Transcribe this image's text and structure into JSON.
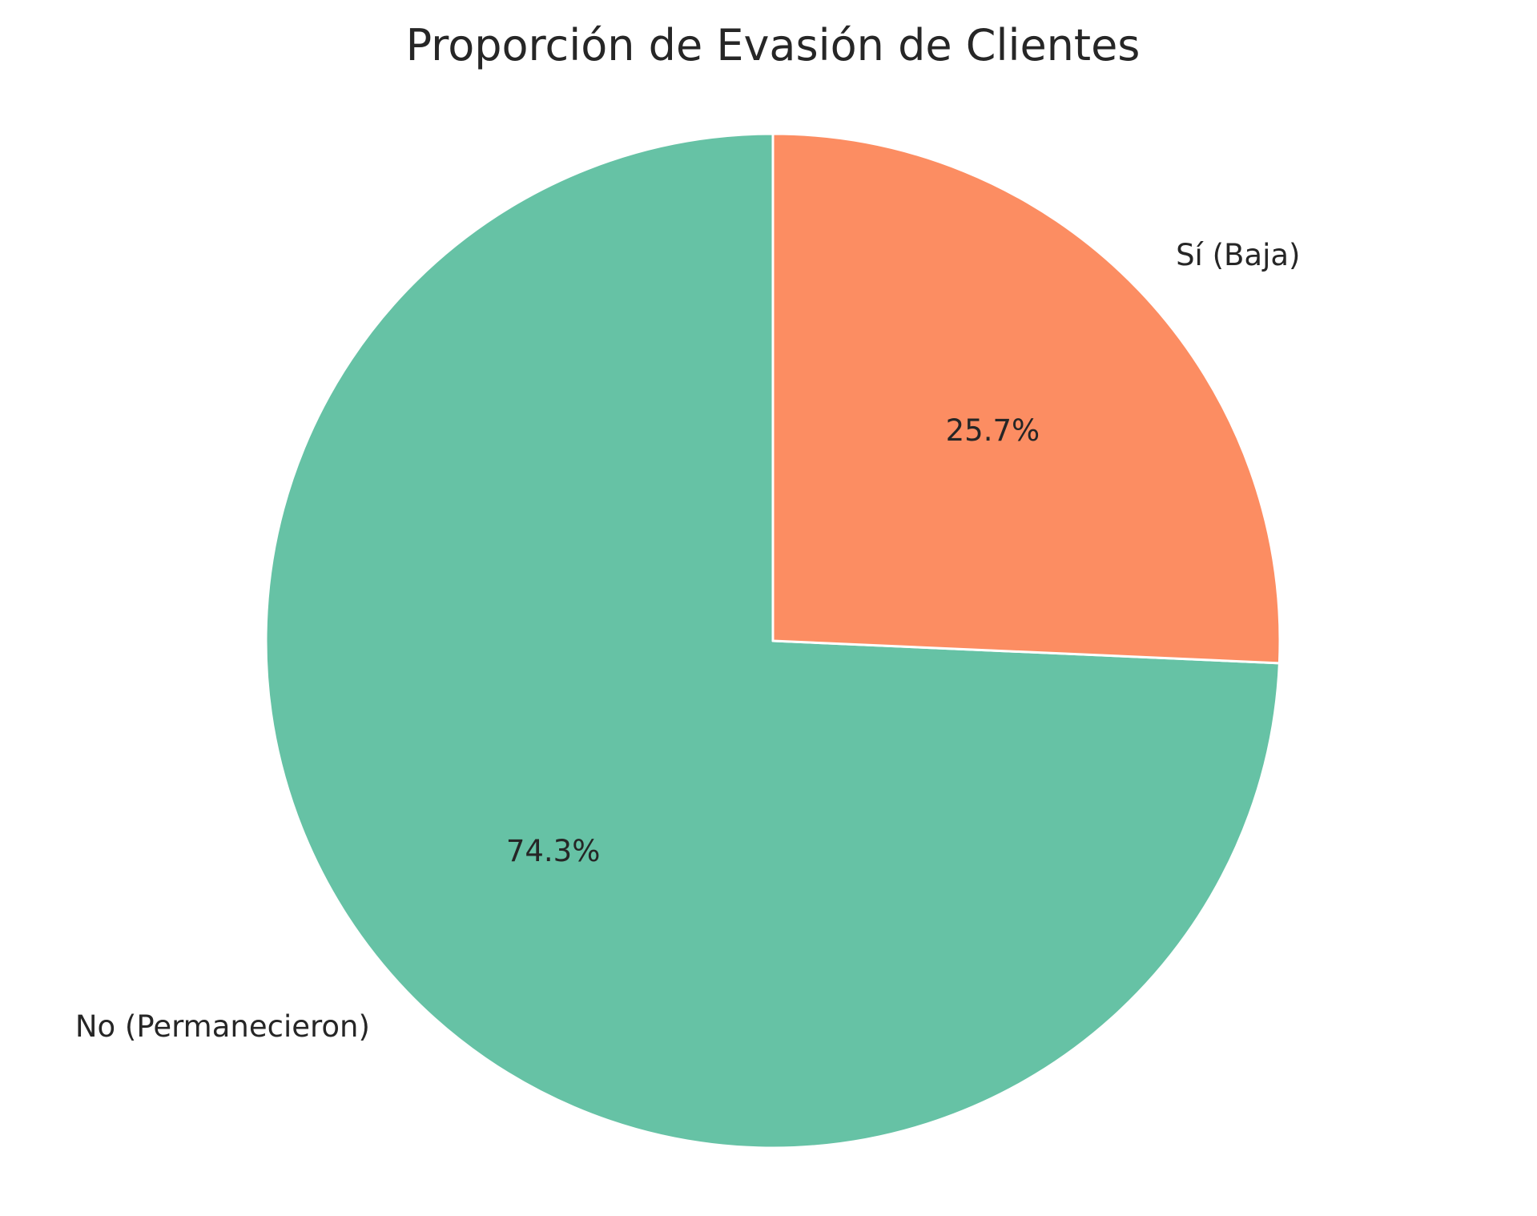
{
  "chart_data": {
    "type": "pie",
    "title": "Proporción de Evasión de Clientes",
    "labels": [
      "No (Permanecieron)",
      "Sí (Baja)"
    ],
    "values": [
      74.3,
      25.7
    ],
    "percent_labels": [
      "74.3%",
      "25.7%"
    ],
    "colors": [
      "#66c2a5",
      "#fc8d62"
    ],
    "legend": "none"
  }
}
